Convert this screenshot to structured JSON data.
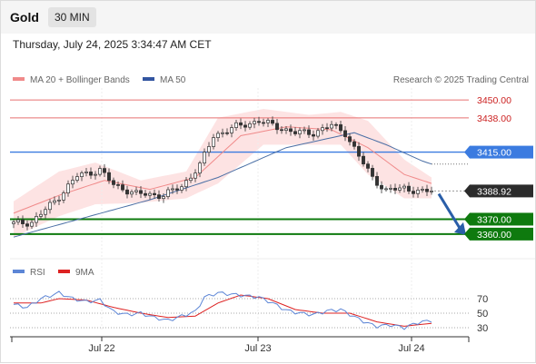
{
  "header": {
    "instrument": "Gold",
    "timeframe": "30 MIN"
  },
  "datetime": "Thursday, July 24, 2025 3:34:47 AM CET",
  "copyright": "Research © 2025 Trading Central",
  "colors": {
    "up": "#ffffff",
    "down": "#333333",
    "resistance": "#e87272",
    "pivot": "#3b7be0",
    "support": "#0e7a0e",
    "ma20": "#f08a8a",
    "ma50": "#4a6fa5",
    "band": "#fde0e0",
    "arrow": "#2a5ea8",
    "rsi": "#5d86d6",
    "rsi_ma": "#dd2222"
  },
  "chart_data": [
    {
      "type": "candlestick",
      "legend": [
        {
          "label": "MA 20 + Bollinger Bands",
          "color": "#f08a8a"
        },
        {
          "label": "MA 50",
          "color": "#3355a0"
        }
      ],
      "legend_position": "top-left",
      "x_ticks": [
        "Jul 22",
        "Jul 23",
        "Jul 24"
      ],
      "y_range": [
        3352,
        3458
      ],
      "levels": [
        {
          "value": 3450.0,
          "label": "3450.00",
          "kind": "resistance"
        },
        {
          "value": 3438.0,
          "label": "3438.00",
          "kind": "resistance"
        },
        {
          "value": 3415.0,
          "label": "3415.00",
          "kind": "pivot"
        },
        {
          "value": 3388.92,
          "label": "3388.92",
          "kind": "last"
        },
        {
          "value": 3370.0,
          "label": "3370.00",
          "kind": "support"
        },
        {
          "value": 3360.0,
          "label": "3360.00",
          "kind": "support"
        }
      ],
      "keypoints": [
        [
          0,
          3367
        ],
        [
          4,
          3368
        ],
        [
          9,
          3382
        ],
        [
          14,
          3399
        ],
        [
          19,
          3403
        ],
        [
          22,
          3393
        ],
        [
          27,
          3387
        ],
        [
          33,
          3386
        ],
        [
          37,
          3392
        ],
        [
          41,
          3406
        ],
        [
          44,
          3426
        ],
        [
          49,
          3432
        ],
        [
          54,
          3436
        ],
        [
          58,
          3432
        ],
        [
          62,
          3428
        ],
        [
          66,
          3428
        ],
        [
          70,
          3433
        ],
        [
          73,
          3428
        ],
        [
          76,
          3412
        ],
        [
          79,
          3398
        ],
        [
          82,
          3389
        ],
        [
          86,
          3391
        ],
        [
          90,
          3388
        ],
        [
          92,
          3389
        ]
      ],
      "candle_count": 93,
      "ma20": [
        [
          0,
          3374
        ],
        [
          10,
          3386
        ],
        [
          20,
          3396
        ],
        [
          30,
          3390
        ],
        [
          40,
          3398
        ],
        [
          50,
          3426
        ],
        [
          60,
          3432
        ],
        [
          70,
          3430
        ],
        [
          78,
          3418
        ],
        [
          86,
          3400
        ],
        [
          92,
          3394
        ]
      ],
      "ma50": [
        [
          0,
          3358
        ],
        [
          12,
          3368
        ],
        [
          30,
          3383
        ],
        [
          45,
          3398
        ],
        [
          60,
          3418
        ],
        [
          75,
          3428
        ],
        [
          82,
          3420
        ],
        [
          90,
          3409
        ],
        [
          92,
          3407
        ]
      ],
      "bb_upper": [
        [
          0,
          3382
        ],
        [
          10,
          3402
        ],
        [
          18,
          3408
        ],
        [
          28,
          3396
        ],
        [
          38,
          3402
        ],
        [
          45,
          3438
        ],
        [
          55,
          3444
        ],
        [
          65,
          3440
        ],
        [
          72,
          3442
        ],
        [
          78,
          3436
        ],
        [
          86,
          3410
        ],
        [
          92,
          3398
        ]
      ],
      "bb_lower": [
        [
          0,
          3358
        ],
        [
          10,
          3372
        ],
        [
          18,
          3380
        ],
        [
          28,
          3381
        ],
        [
          38,
          3384
        ],
        [
          45,
          3394
        ],
        [
          55,
          3420
        ],
        [
          65,
          3420
        ],
        [
          72,
          3420
        ],
        [
          78,
          3400
        ],
        [
          86,
          3384
        ],
        [
          92,
          3384
        ]
      ]
    },
    {
      "type": "line",
      "legend": [
        {
          "label": "RSI",
          "color": "#5d86d6"
        },
        {
          "label": "9MA",
          "color": "#dd2222"
        }
      ],
      "y_ticks": [
        "70",
        "50",
        "30"
      ],
      "y_range": [
        20,
        90
      ],
      "rsi": [
        [
          0,
          62
        ],
        [
          3,
          58
        ],
        [
          6,
          70
        ],
        [
          10,
          78
        ],
        [
          13,
          70
        ],
        [
          16,
          66
        ],
        [
          19,
          68
        ],
        [
          22,
          52
        ],
        [
          25,
          48
        ],
        [
          28,
          50
        ],
        [
          31,
          44
        ],
        [
          34,
          40
        ],
        [
          37,
          46
        ],
        [
          40,
          52
        ],
        [
          42,
          72
        ],
        [
          45,
          78
        ],
        [
          48,
          76
        ],
        [
          51,
          74
        ],
        [
          54,
          72
        ],
        [
          57,
          64
        ],
        [
          60,
          54
        ],
        [
          63,
          50
        ],
        [
          66,
          48
        ],
        [
          69,
          53
        ],
        [
          72,
          55
        ],
        [
          75,
          45
        ],
        [
          78,
          36
        ],
        [
          80,
          32
        ],
        [
          83,
          34
        ],
        [
          86,
          30
        ],
        [
          89,
          37
        ],
        [
          92,
          40
        ]
      ],
      "ma9": [
        [
          0,
          64
        ],
        [
          6,
          64
        ],
        [
          10,
          70
        ],
        [
          16,
          68
        ],
        [
          22,
          58
        ],
        [
          28,
          50
        ],
        [
          34,
          44
        ],
        [
          40,
          46
        ],
        [
          45,
          64
        ],
        [
          50,
          75
        ],
        [
          56,
          70
        ],
        [
          62,
          55
        ],
        [
          68,
          50
        ],
        [
          74,
          50
        ],
        [
          80,
          38
        ],
        [
          86,
          32
        ],
        [
          92,
          36
        ]
      ]
    }
  ]
}
